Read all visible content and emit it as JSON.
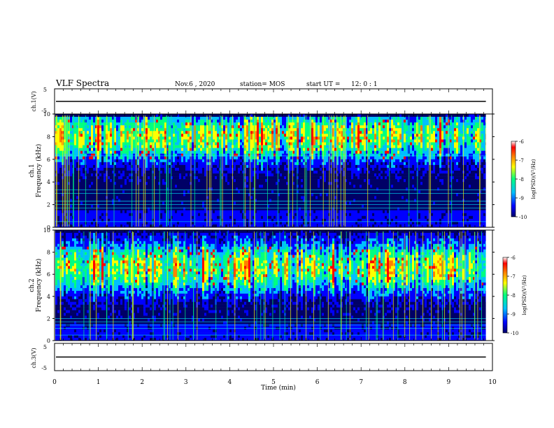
{
  "header": {
    "title": "VLF Spectra",
    "date": "Nov.6 , 2020",
    "station": "station= MOS",
    "start_label": "start UT =",
    "start_time": "12: 0 : 1"
  },
  "colors": {
    "colormap": [
      "#000066",
      "#0000ff",
      "#00bfff",
      "#00ff80",
      "#ffff00",
      "#ff8000",
      "#ff0000",
      "#ffffff"
    ]
  },
  "chart_data": [
    {
      "type": "line",
      "panel": "ch1-voltage",
      "ylabel": "ch.1(V)",
      "ylim": [
        -5,
        5
      ],
      "yticks": [
        "5",
        "-5"
      ],
      "x": [
        0,
        9.85
      ],
      "y": [
        0,
        0
      ]
    },
    {
      "type": "heatmap",
      "panel": "ch1-spectrogram",
      "ylabel_line1": "ch.1",
      "ylabel_line2": "Frequency (kHz)",
      "ylim": [
        0,
        10
      ],
      "yticks": [
        "0",
        "2",
        "4",
        "6",
        "8",
        "10"
      ],
      "xlim": [
        0,
        10
      ],
      "data_end_min": 9.85,
      "colorbar_label": "log(PSD)(V²/Hz)",
      "colorbar_range": [
        -10,
        -6
      ],
      "colorbar_ticks": [
        "-6",
        "-7",
        "-8",
        "-9",
        "-10"
      ],
      "emission_band_khz": [
        6,
        9.5
      ],
      "narrowband_lines_khz": [
        0.5,
        1.7,
        2.0,
        2.3,
        3.0,
        3.3,
        6.3
      ]
    },
    {
      "type": "heatmap",
      "panel": "ch2-spectrogram",
      "ylabel_line1": "ch.2",
      "ylabel_line2": "Frequency (kHz)",
      "ylim": [
        0,
        10
      ],
      "yticks": [
        "0",
        "2",
        "4",
        "6",
        "8",
        "10"
      ],
      "xlim": [
        0,
        10
      ],
      "data_end_min": 9.85,
      "colorbar_label": "log(PSD)(V²/Hz)",
      "colorbar_range": [
        -10,
        -6
      ],
      "colorbar_ticks": [
        "-6",
        "-7",
        "-8",
        "-9",
        "-10"
      ],
      "emission_band_khz": [
        5,
        8.5
      ],
      "narrowband_lines_khz": [
        0.5,
        1.1,
        1.4,
        1.7,
        2.0
      ]
    },
    {
      "type": "line",
      "panel": "ch3-voltage",
      "ylabel": "ch.3(V)",
      "ylim": [
        -5,
        5
      ],
      "yticks": [
        "5",
        "-5"
      ],
      "x": [
        0,
        9.85
      ],
      "y": [
        0,
        0
      ]
    }
  ],
  "xaxis": {
    "label": "Time (min)",
    "ticks": [
      "0",
      "1",
      "2",
      "3",
      "4",
      "5",
      "6",
      "7",
      "8",
      "9",
      "10"
    ]
  }
}
